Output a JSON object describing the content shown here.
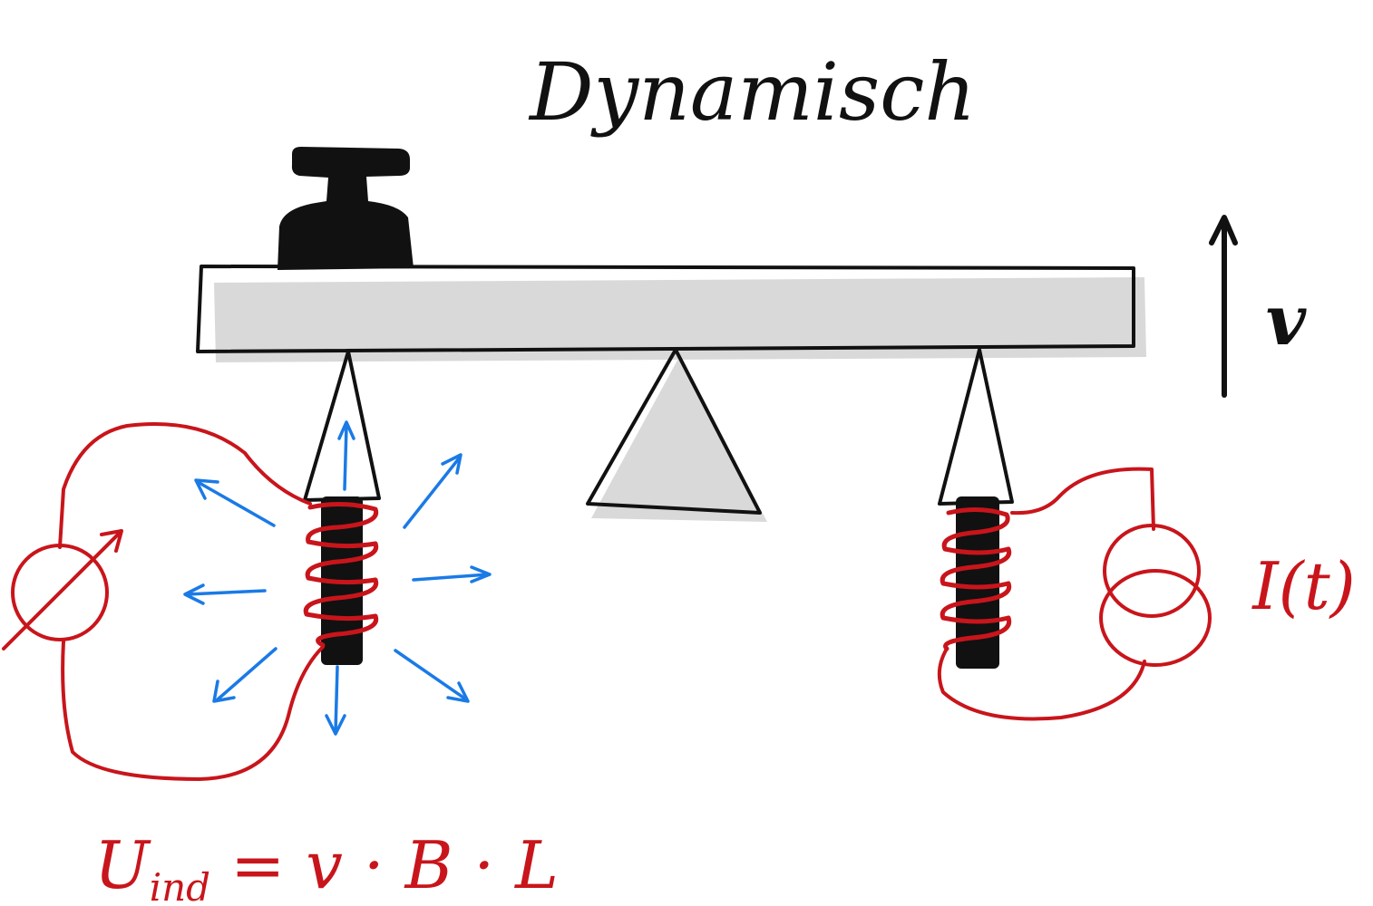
{
  "title": "Dynamisch",
  "velocity_label": "v",
  "current_label": "I(t)",
  "formula": {
    "symbol": "U",
    "subscript": "ind",
    "rhs": "= v · B · L"
  },
  "colors": {
    "ink": "#111111",
    "wire": "#c8151b",
    "field": "#1a7ae6",
    "shadow": "#d9d9d9",
    "magnet": "#111111"
  },
  "icons": {
    "weight": "weight-icon",
    "voltmeter": "voltmeter-icon",
    "current_source": "current-source-icon",
    "velocity_arrow": "arrow-up-icon"
  }
}
